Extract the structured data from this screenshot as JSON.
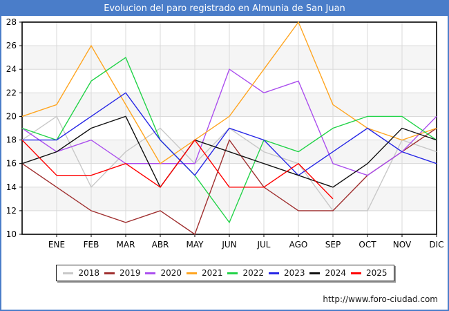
{
  "title": "Evolucion del paro registrado en Almunia de San Juan",
  "footer": {
    "url": "http://www.foro-ciudad.com"
  },
  "colors": {
    "frame": "#4a7dc9",
    "titlebar_bg": "#4a7dc9",
    "titlebar_text": "#ffffff",
    "plot_border": "#000000",
    "grid": "#d9d9d9",
    "row_band": "#f5f5f5",
    "axis_text": "#000000"
  },
  "chart_data": {
    "type": "line",
    "title": "Evolucion del paro registrado en Almunia de San Juan",
    "xlabel": "",
    "ylabel": "",
    "ylim": [
      10,
      28
    ],
    "ytick_step": 2,
    "grid": true,
    "legend_position": "bottom",
    "x_labels": [
      "",
      "ENE",
      "FEB",
      "MAR",
      "ABR",
      "MAY",
      "JUN",
      "JUL",
      "AGO",
      "SEP",
      "OCT",
      "NOV",
      "DIC"
    ],
    "series": [
      {
        "name": "2018",
        "color": "#c8c8c8",
        "values": [
          18,
          20,
          14,
          17,
          19,
          16,
          19,
          17,
          16,
          12,
          12,
          18,
          17
        ]
      },
      {
        "name": "2019",
        "color": "#a03030",
        "values": [
          16,
          14,
          12,
          11,
          12,
          10,
          18,
          14,
          12,
          12,
          15,
          17,
          19
        ]
      },
      {
        "name": "2020",
        "color": "#ab4fee",
        "values": [
          19,
          17,
          18,
          16,
          16,
          16,
          24,
          22,
          23,
          16,
          15,
          17,
          20
        ]
      },
      {
        "name": "2021",
        "color": "#ffa520",
        "values": [
          20,
          21,
          26,
          21,
          16,
          18,
          20,
          24,
          28,
          21,
          19,
          18,
          19
        ]
      },
      {
        "name": "2022",
        "color": "#22d348",
        "values": [
          19,
          18,
          23,
          25,
          18,
          15,
          11,
          18,
          17,
          19,
          20,
          20,
          18
        ]
      },
      {
        "name": "2023",
        "color": "#2727e6",
        "values": [
          18,
          18,
          20,
          22,
          18,
          15,
          19,
          18,
          15,
          17,
          19,
          17,
          16
        ]
      },
      {
        "name": "2024",
        "color": "#111111",
        "values": [
          16,
          17,
          19,
          20,
          14,
          18,
          17,
          16,
          15,
          14,
          16,
          19,
          18
        ]
      },
      {
        "name": "2025",
        "color": "#ff0000",
        "values": [
          18,
          15,
          15,
          16,
          14,
          18,
          14,
          14,
          16,
          13,
          null,
          null,
          null
        ]
      }
    ]
  }
}
